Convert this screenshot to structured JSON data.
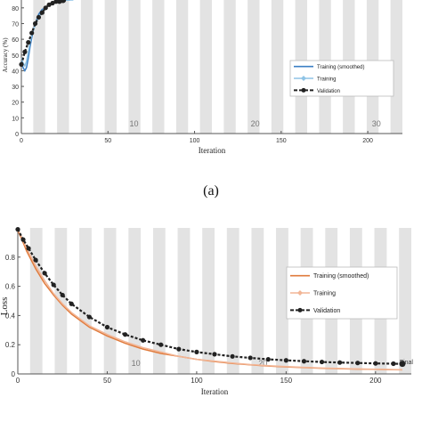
{
  "caption": "(a)",
  "chart_data": [
    {
      "type": "line",
      "xlabel": "Iteration",
      "ylabel": "Accuracy (%)",
      "xlim": [
        0,
        220
      ],
      "ylim": [
        0,
        85
      ],
      "xticks": [
        0,
        50,
        100,
        150,
        200
      ],
      "xtick_labels": [
        "0",
        "50",
        "100",
        "150",
        "200"
      ],
      "yticks": [
        0,
        10,
        20,
        30,
        40,
        50,
        60,
        70,
        80
      ],
      "ytick_labels": [
        "0",
        "10",
        "20",
        "30",
        "40",
        "50",
        "60",
        "70",
        "80"
      ],
      "epoch_labels": [
        {
          "text": "10",
          "x": 65
        },
        {
          "text": "20",
          "x": 135
        },
        {
          "text": "30",
          "x": 205
        }
      ],
      "epoch_bands": true,
      "grid": false,
      "legend_position": "right",
      "series": [
        {
          "name": "Training (smoothed)",
          "color": "#3b7fc4",
          "style": "solid",
          "x": [
            0,
            1,
            2,
            3,
            4,
            5,
            6,
            7,
            8,
            9,
            10,
            12,
            14,
            16,
            18,
            20,
            22,
            24,
            26,
            28
          ],
          "y": [
            46,
            42,
            40,
            42,
            48,
            55,
            61,
            66,
            70,
            73,
            76,
            79,
            80,
            82,
            83,
            84,
            84,
            85,
            85,
            85
          ]
        },
        {
          "name": "Training",
          "color": "#8fc4e6",
          "style": "solid",
          "marker": "diamond",
          "x": [
            0,
            1,
            2,
            3,
            4,
            5,
            6,
            8,
            10,
            12,
            14,
            16,
            18,
            20,
            22,
            24,
            26,
            28,
            30
          ],
          "y": [
            48,
            45,
            43,
            46,
            52,
            58,
            63,
            69,
            74,
            78,
            80,
            82,
            83,
            84,
            84,
            85,
            85,
            85,
            85
          ]
        },
        {
          "name": "Validation",
          "color": "#222222",
          "style": "dashed",
          "marker": "circle",
          "x": [
            0,
            2,
            4,
            6,
            8,
            10,
            12,
            14,
            16,
            18,
            20,
            22,
            24
          ],
          "y": [
            44,
            52,
            58,
            64,
            70,
            74,
            77,
            80,
            82,
            83,
            84,
            84,
            85
          ]
        }
      ]
    },
    {
      "type": "line",
      "xlabel": "Iteration",
      "ylabel": "Loss",
      "xlim": [
        0,
        220
      ],
      "ylim": [
        0,
        1.0
      ],
      "xticks": [
        0,
        50,
        100,
        150,
        200
      ],
      "xtick_labels": [
        "0",
        "50",
        "100",
        "150",
        "200"
      ],
      "yticks": [
        0,
        0.2,
        0.4,
        0.6,
        0.8
      ],
      "ytick_labels": [
        "0",
        "0.2",
        "0.4",
        "0.6",
        "0.8"
      ],
      "epoch_labels": [
        {
          "text": "10",
          "x": 66
        },
        {
          "text": "20",
          "x": 137
        }
      ],
      "end_label": "Final",
      "epoch_bands": true,
      "grid": false,
      "legend_position": "right",
      "series": [
        {
          "name": "Training (smoothed)",
          "color": "#e07b3c",
          "style": "solid",
          "x": [
            0,
            2,
            5,
            10,
            15,
            20,
            25,
            30,
            40,
            50,
            60,
            70,
            80,
            90,
            100,
            110,
            120,
            130,
            140,
            150,
            160,
            170,
            180,
            190,
            200,
            210,
            215
          ],
          "y": [
            0.98,
            0.93,
            0.84,
            0.72,
            0.62,
            0.54,
            0.47,
            0.41,
            0.32,
            0.26,
            0.21,
            0.17,
            0.14,
            0.12,
            0.1,
            0.085,
            0.072,
            0.062,
            0.054,
            0.048,
            0.043,
            0.039,
            0.036,
            0.033,
            0.031,
            0.029,
            0.028
          ]
        },
        {
          "name": "Training",
          "color": "#f2b595",
          "style": "solid",
          "marker": "diamond",
          "x": [
            0,
            2,
            5,
            10,
            15,
            20,
            25,
            30,
            40,
            50,
            60,
            70,
            80,
            90,
            100,
            110,
            120,
            130,
            140,
            150,
            160,
            170,
            180,
            190,
            200,
            210,
            215
          ],
          "y": [
            0.99,
            0.94,
            0.86,
            0.74,
            0.64,
            0.55,
            0.48,
            0.42,
            0.33,
            0.27,
            0.22,
            0.18,
            0.15,
            0.12,
            0.1,
            0.088,
            0.075,
            0.064,
            0.056,
            0.05,
            0.045,
            0.04,
            0.037,
            0.034,
            0.032,
            0.03,
            0.029
          ]
        },
        {
          "name": "Validation",
          "color": "#222222",
          "style": "dashed",
          "marker": "circle",
          "x": [
            0,
            3,
            6,
            10,
            15,
            20,
            25,
            30,
            40,
            50,
            60,
            70,
            80,
            90,
            100,
            110,
            120,
            130,
            140,
            150,
            160,
            170,
            180,
            190,
            200,
            210,
            215
          ],
          "y": [
            0.99,
            0.92,
            0.86,
            0.78,
            0.69,
            0.61,
            0.54,
            0.48,
            0.39,
            0.32,
            0.27,
            0.23,
            0.2,
            0.17,
            0.15,
            0.135,
            0.12,
            0.11,
            0.1,
            0.093,
            0.087,
            0.082,
            0.078,
            0.075,
            0.072,
            0.07,
            0.069
          ]
        }
      ]
    }
  ]
}
